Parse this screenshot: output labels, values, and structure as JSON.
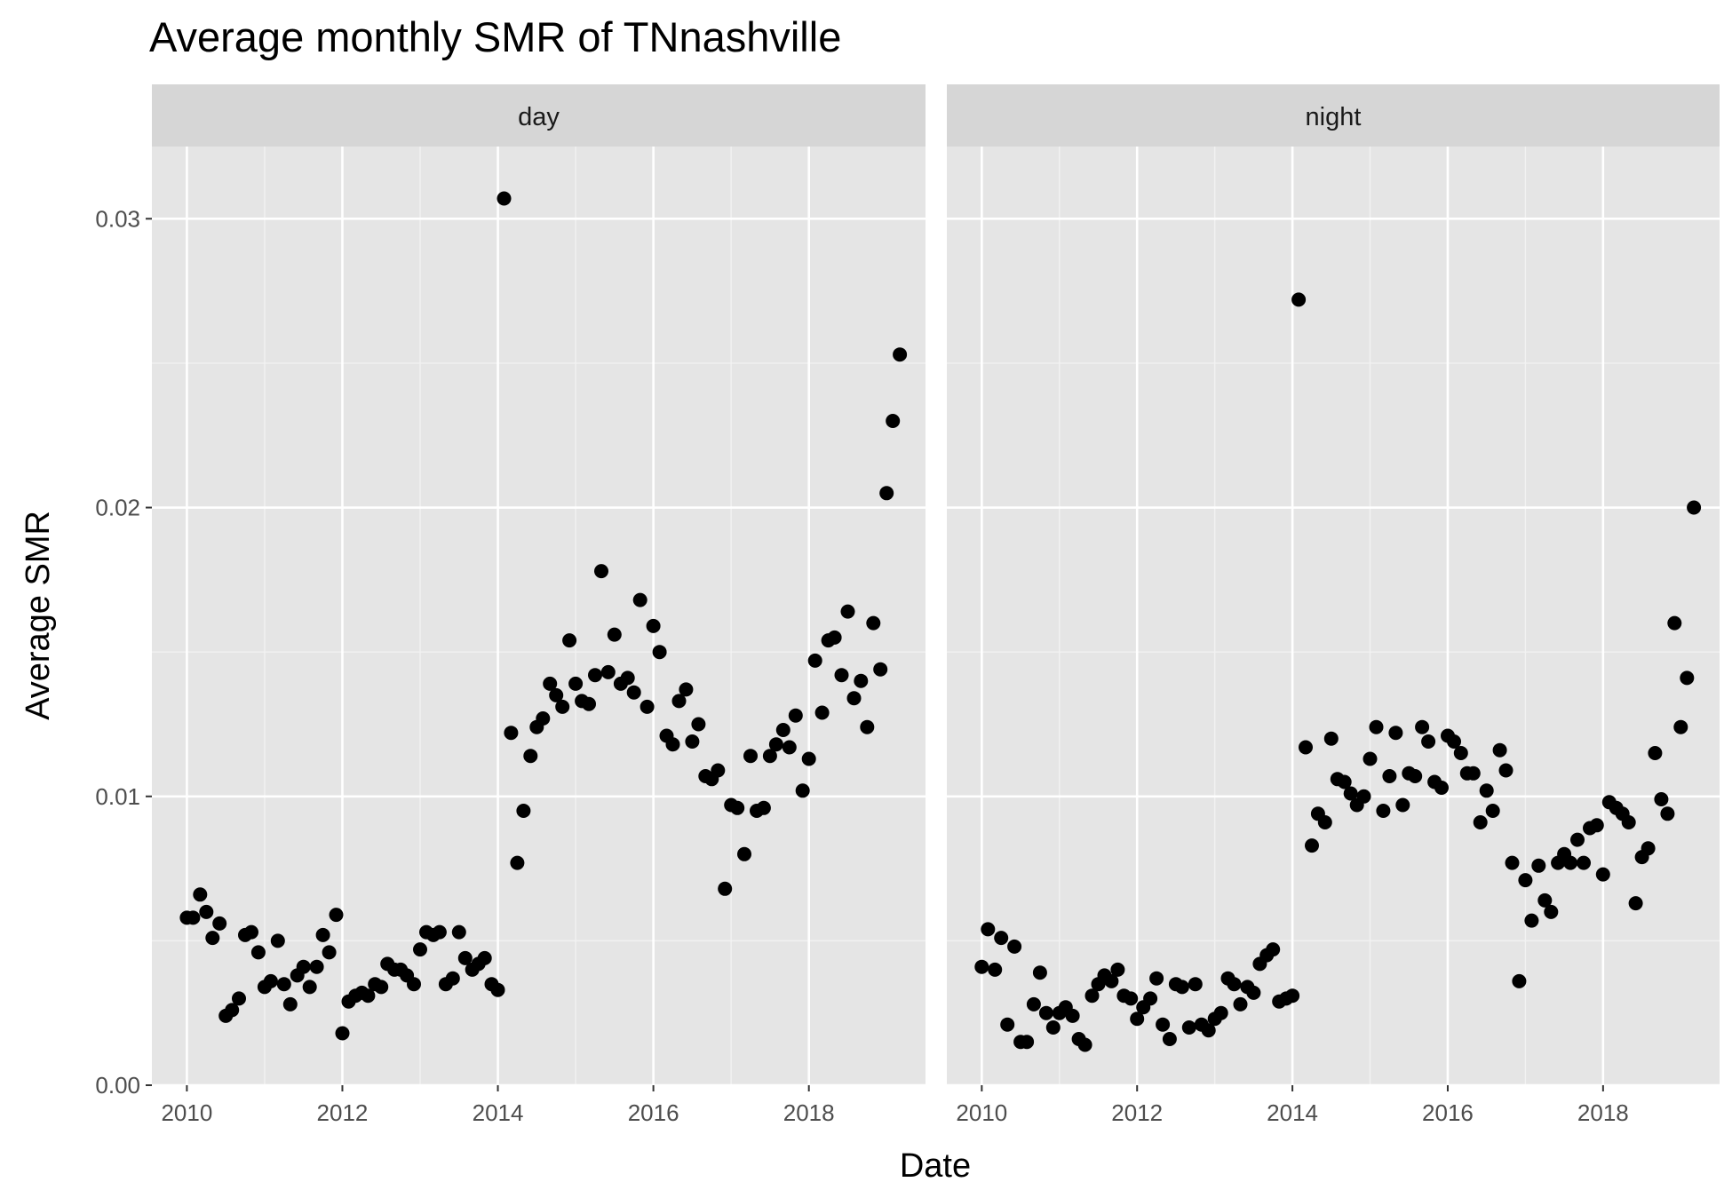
{
  "chart_data": {
    "type": "scatter",
    "title": "Average monthly SMR of TNnashville",
    "xlabel": "Date",
    "ylabel": "Average SMR",
    "xlim": [
      2009.55,
      2019.5
    ],
    "ylim": [
      0,
      0.0325
    ],
    "x_ticks": [
      2010,
      2012,
      2014,
      2016,
      2018
    ],
    "x_tick_labels": [
      "2010",
      "2012",
      "2014",
      "2016",
      "2018"
    ],
    "y_ticks": [
      0,
      0.01,
      0.02,
      0.03
    ],
    "y_tick_labels": [
      "0.00",
      "0.01",
      "0.02",
      "0.03"
    ],
    "grid": true,
    "point_color": "#000000",
    "panel_background": "#e5e5e5",
    "strip_background": "#d6d6d6",
    "panels": [
      {
        "label": "day",
        "points": [
          [
            2010.0,
            0.0058
          ],
          [
            2010.08,
            0.0058
          ],
          [
            2010.17,
            0.0066
          ],
          [
            2010.25,
            0.006
          ],
          [
            2010.33,
            0.0051
          ],
          [
            2010.42,
            0.0056
          ],
          [
            2010.5,
            0.0024
          ],
          [
            2010.58,
            0.0026
          ],
          [
            2010.67,
            0.003
          ],
          [
            2010.75,
            0.0052
          ],
          [
            2010.83,
            0.0053
          ],
          [
            2010.92,
            0.0046
          ],
          [
            2011.0,
            0.0034
          ],
          [
            2011.08,
            0.0036
          ],
          [
            2011.17,
            0.005
          ],
          [
            2011.25,
            0.0035
          ],
          [
            2011.33,
            0.0028
          ],
          [
            2011.42,
            0.0038
          ],
          [
            2011.5,
            0.0041
          ],
          [
            2011.58,
            0.0034
          ],
          [
            2011.67,
            0.0041
          ],
          [
            2011.75,
            0.0052
          ],
          [
            2011.83,
            0.0046
          ],
          [
            2011.92,
            0.0059
          ],
          [
            2012.0,
            0.0018
          ],
          [
            2012.08,
            0.0029
          ],
          [
            2012.17,
            0.0031
          ],
          [
            2012.25,
            0.0032
          ],
          [
            2012.33,
            0.0031
          ],
          [
            2012.42,
            0.0035
          ],
          [
            2012.5,
            0.0034
          ],
          [
            2012.58,
            0.0042
          ],
          [
            2012.67,
            0.004
          ],
          [
            2012.75,
            0.004
          ],
          [
            2012.83,
            0.0038
          ],
          [
            2012.92,
            0.0035
          ],
          [
            2013.0,
            0.0047
          ],
          [
            2013.08,
            0.0053
          ],
          [
            2013.17,
            0.0052
          ],
          [
            2013.25,
            0.0053
          ],
          [
            2013.33,
            0.0035
          ],
          [
            2013.42,
            0.0037
          ],
          [
            2013.5,
            0.0053
          ],
          [
            2013.58,
            0.0044
          ],
          [
            2013.67,
            0.004
          ],
          [
            2013.75,
            0.0042
          ],
          [
            2013.83,
            0.0044
          ],
          [
            2013.92,
            0.0035
          ],
          [
            2014.0,
            0.0033
          ],
          [
            2014.08,
            0.0307
          ],
          [
            2014.17,
            0.0122
          ],
          [
            2014.25,
            0.0077
          ],
          [
            2014.33,
            0.0095
          ],
          [
            2014.42,
            0.0114
          ],
          [
            2014.5,
            0.0124
          ],
          [
            2014.58,
            0.0127
          ],
          [
            2014.67,
            0.0139
          ],
          [
            2014.75,
            0.0135
          ],
          [
            2014.83,
            0.0131
          ],
          [
            2014.92,
            0.0154
          ],
          [
            2015.0,
            0.0139
          ],
          [
            2015.08,
            0.0133
          ],
          [
            2015.17,
            0.0132
          ],
          [
            2015.25,
            0.0142
          ],
          [
            2015.33,
            0.0178
          ],
          [
            2015.42,
            0.0143
          ],
          [
            2015.5,
            0.0156
          ],
          [
            2015.58,
            0.0139
          ],
          [
            2015.67,
            0.0141
          ],
          [
            2015.75,
            0.0136
          ],
          [
            2015.83,
            0.0168
          ],
          [
            2015.92,
            0.0131
          ],
          [
            2016.0,
            0.0159
          ],
          [
            2016.08,
            0.015
          ],
          [
            2016.17,
            0.0121
          ],
          [
            2016.25,
            0.0118
          ],
          [
            2016.33,
            0.0133
          ],
          [
            2016.42,
            0.0137
          ],
          [
            2016.5,
            0.0119
          ],
          [
            2016.58,
            0.0125
          ],
          [
            2016.67,
            0.0107
          ],
          [
            2016.75,
            0.0106
          ],
          [
            2016.83,
            0.0109
          ],
          [
            2016.92,
            0.0068
          ],
          [
            2017.0,
            0.0097
          ],
          [
            2017.08,
            0.0096
          ],
          [
            2017.17,
            0.008
          ],
          [
            2017.25,
            0.0114
          ],
          [
            2017.33,
            0.0095
          ],
          [
            2017.42,
            0.0096
          ],
          [
            2017.5,
            0.0114
          ],
          [
            2017.58,
            0.0118
          ],
          [
            2017.67,
            0.0123
          ],
          [
            2017.75,
            0.0117
          ],
          [
            2017.83,
            0.0128
          ],
          [
            2017.92,
            0.0102
          ],
          [
            2018.0,
            0.0113
          ],
          [
            2018.08,
            0.0147
          ],
          [
            2018.17,
            0.0129
          ],
          [
            2018.25,
            0.0154
          ],
          [
            2018.33,
            0.0155
          ],
          [
            2018.42,
            0.0142
          ],
          [
            2018.5,
            0.0164
          ],
          [
            2018.58,
            0.0134
          ],
          [
            2018.67,
            0.014
          ],
          [
            2018.75,
            0.0124
          ],
          [
            2018.83,
            0.016
          ],
          [
            2018.92,
            0.0144
          ],
          [
            2019.0,
            0.0205
          ],
          [
            2019.08,
            0.023
          ],
          [
            2019.17,
            0.0253
          ]
        ]
      },
      {
        "label": "night",
        "points": [
          [
            2010.0,
            0.0041
          ],
          [
            2010.08,
            0.0054
          ],
          [
            2010.17,
            0.004
          ],
          [
            2010.25,
            0.0051
          ],
          [
            2010.33,
            0.0021
          ],
          [
            2010.42,
            0.0048
          ],
          [
            2010.5,
            0.0015
          ],
          [
            2010.58,
            0.0015
          ],
          [
            2010.67,
            0.0028
          ],
          [
            2010.75,
            0.0039
          ],
          [
            2010.83,
            0.0025
          ],
          [
            2010.92,
            0.002
          ],
          [
            2011.0,
            0.0025
          ],
          [
            2011.08,
            0.0027
          ],
          [
            2011.17,
            0.0024
          ],
          [
            2011.25,
            0.0016
          ],
          [
            2011.33,
            0.0014
          ],
          [
            2011.42,
            0.0031
          ],
          [
            2011.5,
            0.0035
          ],
          [
            2011.58,
            0.0038
          ],
          [
            2011.67,
            0.0036
          ],
          [
            2011.75,
            0.004
          ],
          [
            2011.83,
            0.0031
          ],
          [
            2011.92,
            0.003
          ],
          [
            2012.0,
            0.0023
          ],
          [
            2012.08,
            0.0027
          ],
          [
            2012.17,
            0.003
          ],
          [
            2012.25,
            0.0037
          ],
          [
            2012.33,
            0.0021
          ],
          [
            2012.42,
            0.0016
          ],
          [
            2012.5,
            0.0035
          ],
          [
            2012.58,
            0.0034
          ],
          [
            2012.67,
            0.002
          ],
          [
            2012.75,
            0.0035
          ],
          [
            2012.83,
            0.0021
          ],
          [
            2012.92,
            0.0019
          ],
          [
            2013.0,
            0.0023
          ],
          [
            2013.08,
            0.0025
          ],
          [
            2013.17,
            0.0037
          ],
          [
            2013.25,
            0.0035
          ],
          [
            2013.33,
            0.0028
          ],
          [
            2013.42,
            0.0034
          ],
          [
            2013.5,
            0.0032
          ],
          [
            2013.58,
            0.0042
          ],
          [
            2013.67,
            0.0045
          ],
          [
            2013.75,
            0.0047
          ],
          [
            2013.83,
            0.0029
          ],
          [
            2013.92,
            0.003
          ],
          [
            2014.0,
            0.0031
          ],
          [
            2014.08,
            0.0272
          ],
          [
            2014.17,
            0.0117
          ],
          [
            2014.25,
            0.0083
          ],
          [
            2014.33,
            0.0094
          ],
          [
            2014.42,
            0.0091
          ],
          [
            2014.5,
            0.012
          ],
          [
            2014.58,
            0.0106
          ],
          [
            2014.67,
            0.0105
          ],
          [
            2014.75,
            0.0101
          ],
          [
            2014.83,
            0.0097
          ],
          [
            2014.92,
            0.01
          ],
          [
            2015.0,
            0.0113
          ],
          [
            2015.08,
            0.0124
          ],
          [
            2015.17,
            0.0095
          ],
          [
            2015.25,
            0.0107
          ],
          [
            2015.33,
            0.0122
          ],
          [
            2015.42,
            0.0097
          ],
          [
            2015.5,
            0.0108
          ],
          [
            2015.58,
            0.0107
          ],
          [
            2015.67,
            0.0124
          ],
          [
            2015.75,
            0.0119
          ],
          [
            2015.83,
            0.0105
          ],
          [
            2015.92,
            0.0103
          ],
          [
            2016.0,
            0.0121
          ],
          [
            2016.08,
            0.0119
          ],
          [
            2016.17,
            0.0115
          ],
          [
            2016.25,
            0.0108
          ],
          [
            2016.33,
            0.0108
          ],
          [
            2016.42,
            0.0091
          ],
          [
            2016.5,
            0.0102
          ],
          [
            2016.58,
            0.0095
          ],
          [
            2016.67,
            0.0116
          ],
          [
            2016.75,
            0.0109
          ],
          [
            2016.83,
            0.0077
          ],
          [
            2016.92,
            0.0036
          ],
          [
            2017.0,
            0.0071
          ],
          [
            2017.08,
            0.0057
          ],
          [
            2017.17,
            0.0076
          ],
          [
            2017.25,
            0.0064
          ],
          [
            2017.33,
            0.006
          ],
          [
            2017.42,
            0.0077
          ],
          [
            2017.5,
            0.008
          ],
          [
            2017.58,
            0.0077
          ],
          [
            2017.67,
            0.0085
          ],
          [
            2017.75,
            0.0077
          ],
          [
            2017.83,
            0.0089
          ],
          [
            2017.92,
            0.009
          ],
          [
            2018.0,
            0.0073
          ],
          [
            2018.08,
            0.0098
          ],
          [
            2018.17,
            0.0096
          ],
          [
            2018.25,
            0.0094
          ],
          [
            2018.33,
            0.0091
          ],
          [
            2018.42,
            0.0063
          ],
          [
            2018.5,
            0.0079
          ],
          [
            2018.58,
            0.0082
          ],
          [
            2018.67,
            0.0115
          ],
          [
            2018.75,
            0.0099
          ],
          [
            2018.83,
            0.0094
          ],
          [
            2018.92,
            0.016
          ],
          [
            2019.0,
            0.0124
          ],
          [
            2019.08,
            0.0141
          ],
          [
            2019.17,
            0.02
          ]
        ]
      }
    ]
  }
}
